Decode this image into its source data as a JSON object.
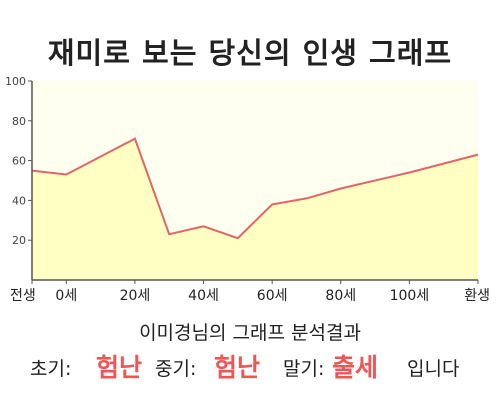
{
  "title": "재미로 보는 당신의 인생 그래프",
  "chart_data": {
    "type": "area",
    "x_categories": [
      "전생",
      "0세",
      "20세",
      "40세",
      "60세",
      "80세",
      "100세",
      "환생"
    ],
    "points": [
      {
        "x": "전생",
        "y": 55
      },
      {
        "x": "0세",
        "y": 53
      },
      {
        "x": "20세",
        "y": 71
      },
      {
        "x": "30세",
        "y": 23
      },
      {
        "x": "40세",
        "y": 27
      },
      {
        "x": "50세",
        "y": 21
      },
      {
        "x": "60세",
        "y": 38
      },
      {
        "x": "70세",
        "y": 41
      },
      {
        "x": "80세",
        "y": 46
      },
      {
        "x": "100세",
        "y": 54
      },
      {
        "x": "환생",
        "y": 63
      }
    ],
    "y_ticks": [
      "20",
      "40",
      "60",
      "80",
      "100"
    ],
    "ylim": [
      0,
      100
    ],
    "grid": false,
    "line_color": "#e06666",
    "fill_color": "#ffffc4",
    "plot_background": "#fffff0"
  },
  "result": {
    "heading": "이미경님의 그래프 분석결과",
    "early_label": "초기:",
    "early_value": "험난",
    "middle_label": "중기:",
    "middle_value": "험난",
    "late_label": "말기:",
    "late_value": "출세",
    "ending": "입니다"
  }
}
